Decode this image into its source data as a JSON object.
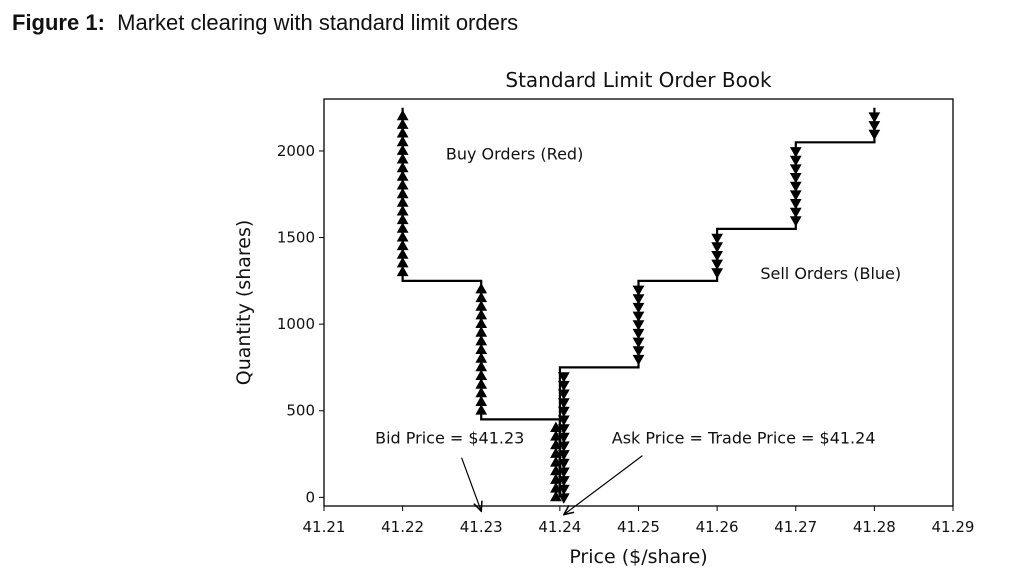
{
  "figure": {
    "label": "Figure 1:",
    "caption": "Market clearing with standard limit orders"
  },
  "chart_data": {
    "type": "line",
    "title": "Standard Limit Order Book",
    "xlabel": "Price ($/share)",
    "ylabel": "Quantity (shares)",
    "xlim": [
      41.21,
      41.29
    ],
    "ylim": [
      -50,
      2300
    ],
    "x_ticks": [
      "41.21",
      "41.22",
      "41.23",
      "41.24",
      "41.25",
      "41.26",
      "41.27",
      "41.28",
      "41.29"
    ],
    "x_tick_values": [
      41.21,
      41.22,
      41.23,
      41.24,
      41.25,
      41.26,
      41.27,
      41.28,
      41.29
    ],
    "y_ticks": [
      "0",
      "500",
      "1000",
      "1500",
      "2000"
    ],
    "y_tick_values": [
      0,
      500,
      1000,
      1500,
      2000
    ],
    "grid": false,
    "series": [
      {
        "name": "Buy Orders (Red)",
        "marker": "triangle-up",
        "line": [
          [
            41.24,
            0
          ],
          [
            41.24,
            450
          ],
          [
            41.23,
            450
          ],
          [
            41.23,
            1250
          ],
          [
            41.22,
            1250
          ],
          [
            41.22,
            2250
          ]
        ],
        "points": [
          [
            41.2395,
            0
          ],
          [
            41.2395,
            50
          ],
          [
            41.2395,
            100
          ],
          [
            41.2395,
            150
          ],
          [
            41.2395,
            200
          ],
          [
            41.2395,
            250
          ],
          [
            41.2395,
            300
          ],
          [
            41.2395,
            350
          ],
          [
            41.2395,
            400
          ],
          [
            41.23,
            500
          ],
          [
            41.23,
            550
          ],
          [
            41.23,
            600
          ],
          [
            41.23,
            650
          ],
          [
            41.23,
            700
          ],
          [
            41.23,
            750
          ],
          [
            41.23,
            800
          ],
          [
            41.23,
            850
          ],
          [
            41.23,
            900
          ],
          [
            41.23,
            950
          ],
          [
            41.23,
            1000
          ],
          [
            41.23,
            1050
          ],
          [
            41.23,
            1100
          ],
          [
            41.23,
            1150
          ],
          [
            41.23,
            1200
          ],
          [
            41.22,
            1300
          ],
          [
            41.22,
            1350
          ],
          [
            41.22,
            1400
          ],
          [
            41.22,
            1450
          ],
          [
            41.22,
            1500
          ],
          [
            41.22,
            1550
          ],
          [
            41.22,
            1600
          ],
          [
            41.22,
            1650
          ],
          [
            41.22,
            1700
          ],
          [
            41.22,
            1750
          ],
          [
            41.22,
            1800
          ],
          [
            41.22,
            1850
          ],
          [
            41.22,
            1900
          ],
          [
            41.22,
            1950
          ],
          [
            41.22,
            2000
          ],
          [
            41.22,
            2050
          ],
          [
            41.22,
            2100
          ],
          [
            41.22,
            2150
          ],
          [
            41.22,
            2200
          ]
        ]
      },
      {
        "name": "Sell Orders (Blue)",
        "marker": "triangle-down",
        "line": [
          [
            41.24,
            0
          ],
          [
            41.24,
            750
          ],
          [
            41.25,
            750
          ],
          [
            41.25,
            1250
          ],
          [
            41.26,
            1250
          ],
          [
            41.26,
            1550
          ],
          [
            41.27,
            1550
          ],
          [
            41.27,
            2050
          ],
          [
            41.28,
            2050
          ],
          [
            41.28,
            2250
          ]
        ],
        "points": [
          [
            41.2405,
            0
          ],
          [
            41.2405,
            50
          ],
          [
            41.2405,
            100
          ],
          [
            41.2405,
            150
          ],
          [
            41.2405,
            200
          ],
          [
            41.2405,
            250
          ],
          [
            41.2405,
            300
          ],
          [
            41.2405,
            350
          ],
          [
            41.2405,
            400
          ],
          [
            41.2405,
            450
          ],
          [
            41.2405,
            500
          ],
          [
            41.2405,
            550
          ],
          [
            41.2405,
            600
          ],
          [
            41.2405,
            650
          ],
          [
            41.2405,
            700
          ],
          [
            41.25,
            800
          ],
          [
            41.25,
            850
          ],
          [
            41.25,
            900
          ],
          [
            41.25,
            950
          ],
          [
            41.25,
            1000
          ],
          [
            41.25,
            1050
          ],
          [
            41.25,
            1100
          ],
          [
            41.25,
            1150
          ],
          [
            41.25,
            1200
          ],
          [
            41.26,
            1300
          ],
          [
            41.26,
            1350
          ],
          [
            41.26,
            1400
          ],
          [
            41.26,
            1450
          ],
          [
            41.26,
            1500
          ],
          [
            41.27,
            1600
          ],
          [
            41.27,
            1650
          ],
          [
            41.27,
            1700
          ],
          [
            41.27,
            1750
          ],
          [
            41.27,
            1800
          ],
          [
            41.27,
            1850
          ],
          [
            41.27,
            1900
          ],
          [
            41.27,
            1950
          ],
          [
            41.27,
            2000
          ],
          [
            41.28,
            2100
          ],
          [
            41.28,
            2150
          ],
          [
            41.28,
            2200
          ]
        ]
      }
    ],
    "annotations": [
      {
        "text": "Buy Orders (Red)",
        "x": 41.2255,
        "y": 1950
      },
      {
        "text": "Sell Orders (Blue)",
        "x": 41.2655,
        "y": 1260
      },
      {
        "text": "Bid Price  = $41.23",
        "x": 41.2165,
        "y": 310,
        "arrow_to": [
          41.23,
          -80
        ]
      },
      {
        "text": "Ask Price = Trade Price  = $41.24",
        "x": 41.2466,
        "y": 310,
        "arrow_to": [
          41.2405,
          -100
        ]
      }
    ]
  }
}
